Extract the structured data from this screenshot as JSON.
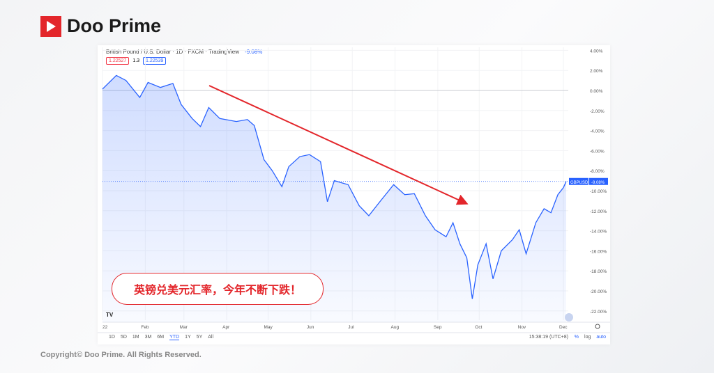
{
  "brand": {
    "name": "Doo Prime",
    "copyright": "Copyright© Doo Prime. All Rights Reserved.",
    "accent": "#e3262b"
  },
  "header": {
    "title": "British Pound / U.S. Dollar · 1D · FXCM · TradingView",
    "change": "-9.08%",
    "bid": "1.22527",
    "spread": "1.3",
    "ask": "1.22539"
  },
  "callout": "英镑兑美元汇率，今年不断下跌！",
  "footer": {
    "ranges": [
      "1D",
      "5D",
      "1M",
      "3M",
      "6M",
      "YTD",
      "1Y",
      "5Y",
      "All"
    ],
    "active_range": "YTD",
    "time": "15:38:19 (UTC+8)",
    "scale": [
      "%",
      "log",
      "auto"
    ]
  },
  "chart_data": {
    "type": "area",
    "symbol_label": "GBPUSD",
    "last_value_label": "-9.08%",
    "line_color": "#2962ff",
    "arrow_color": "#e3262b",
    "ylim": [
      -23,
      4.5
    ],
    "y_ticks": [
      4,
      2,
      0,
      -2,
      -4,
      -6,
      -8,
      -10,
      -12,
      -14,
      -16,
      -18,
      -20,
      -22
    ],
    "y_tick_labels": [
      "4.00%",
      "2.00%",
      "0.00%",
      "-2.00%",
      "-4.00%",
      "-6.00%",
      "-8.00%",
      "-10.00%",
      "-12.00%",
      "-14.00%",
      "-16.00%",
      "-18.00%",
      "-20.00%",
      "-22.00%"
    ],
    "x_ticks": [
      {
        "label": "22",
        "date": "2022-01-01"
      },
      {
        "label": "Feb",
        "date": "2022-02-01"
      },
      {
        "label": "Mar",
        "date": "2022-03-01"
      },
      {
        "label": "Apr",
        "date": "2022-04-01"
      },
      {
        "label": "May",
        "date": "2022-05-01"
      },
      {
        "label": "Jun",
        "date": "2022-06-01"
      },
      {
        "label": "Jul",
        "date": "2022-07-01"
      },
      {
        "label": "Aug",
        "date": "2022-08-01"
      },
      {
        "label": "Sep",
        "date": "2022-09-01"
      },
      {
        "label": "Oct",
        "date": "2022-10-01"
      },
      {
        "label": "Nov",
        "date": "2022-11-01"
      },
      {
        "label": "Dec",
        "date": "2022-12-01"
      }
    ],
    "series": [
      {
        "x": [
          "2022-01-01",
          "2022-01-11",
          "2022-01-18",
          "2022-01-28",
          "2022-02-03",
          "2022-02-12",
          "2022-02-21",
          "2022-02-27",
          "2022-03-07",
          "2022-03-13",
          "2022-03-19",
          "2022-03-27",
          "2022-04-08",
          "2022-04-16",
          "2022-04-21",
          "2022-04-28",
          "2022-05-04",
          "2022-05-11",
          "2022-05-16",
          "2022-05-24",
          "2022-05-31",
          "2022-06-08",
          "2022-06-13",
          "2022-06-18",
          "2022-06-28",
          "2022-07-06",
          "2022-07-13",
          "2022-07-21",
          "2022-07-31",
          "2022-08-08",
          "2022-08-15",
          "2022-08-23",
          "2022-08-30",
          "2022-09-07",
          "2022-09-12",
          "2022-09-17",
          "2022-09-22",
          "2022-09-26",
          "2022-09-30",
          "2022-10-06",
          "2022-10-11",
          "2022-10-17",
          "2022-10-25",
          "2022-10-30",
          "2022-11-04",
          "2022-11-11",
          "2022-11-17",
          "2022-11-22",
          "2022-11-27",
          "2022-12-01",
          "2022-12-03"
        ],
        "values": [
          0.14,
          1.5,
          1.0,
          -0.7,
          0.8,
          0.3,
          0.7,
          -1.4,
          -2.8,
          -3.6,
          -1.7,
          -2.8,
          -3.1,
          -2.9,
          -3.5,
          -6.9,
          -8.0,
          -9.6,
          -7.6,
          -6.6,
          -6.4,
          -7.1,
          -11.1,
          -9.0,
          -9.4,
          -11.5,
          -12.5,
          -11.1,
          -9.4,
          -10.4,
          -10.3,
          -12.5,
          -13.9,
          -14.6,
          -13.2,
          -15.3,
          -16.7,
          -20.8,
          -17.4,
          -15.3,
          -18.8,
          -16.0,
          -14.9,
          -13.9,
          -16.3,
          -13.2,
          -11.8,
          -12.2,
          -10.4,
          -9.7,
          -9.08
        ]
      }
    ]
  }
}
